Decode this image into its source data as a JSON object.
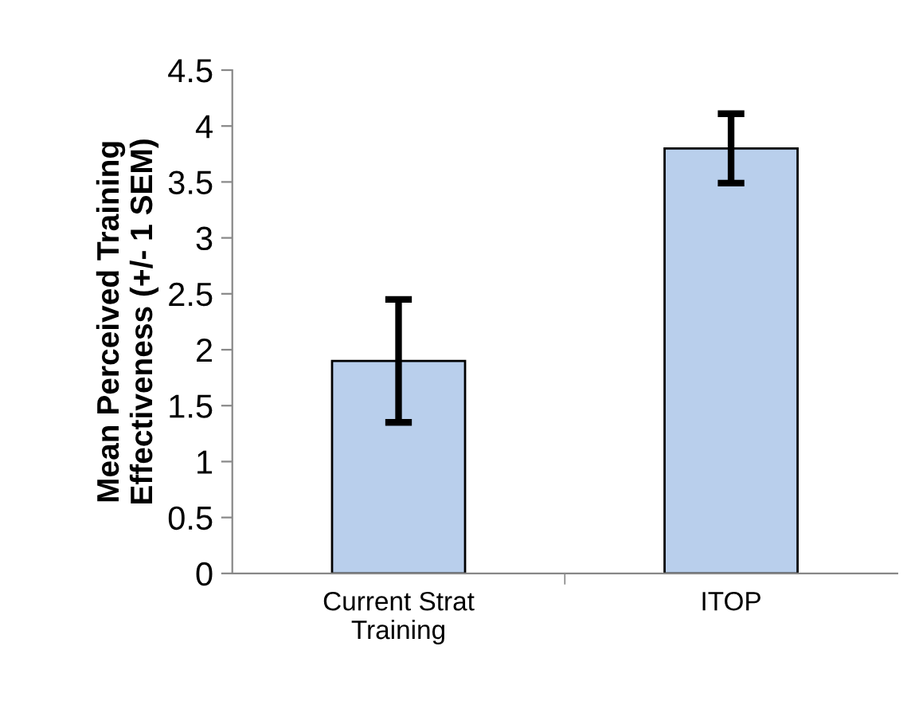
{
  "chart_data": {
    "type": "bar",
    "ylabel": "Mean Perceived Training\nEffectiveness (+/- 1 SEM)",
    "categories": [
      "Current Strat\nTraining",
      "ITOP"
    ],
    "values": [
      1.9,
      3.8
    ],
    "errors": [
      0.55,
      0.31
    ],
    "color": "#b9cfec",
    "ylim": [
      0,
      4.5
    ],
    "yticks": [
      0,
      0.5,
      1,
      1.5,
      2,
      2.5,
      3,
      3.5,
      4,
      4.5
    ],
    "grid": false
  }
}
